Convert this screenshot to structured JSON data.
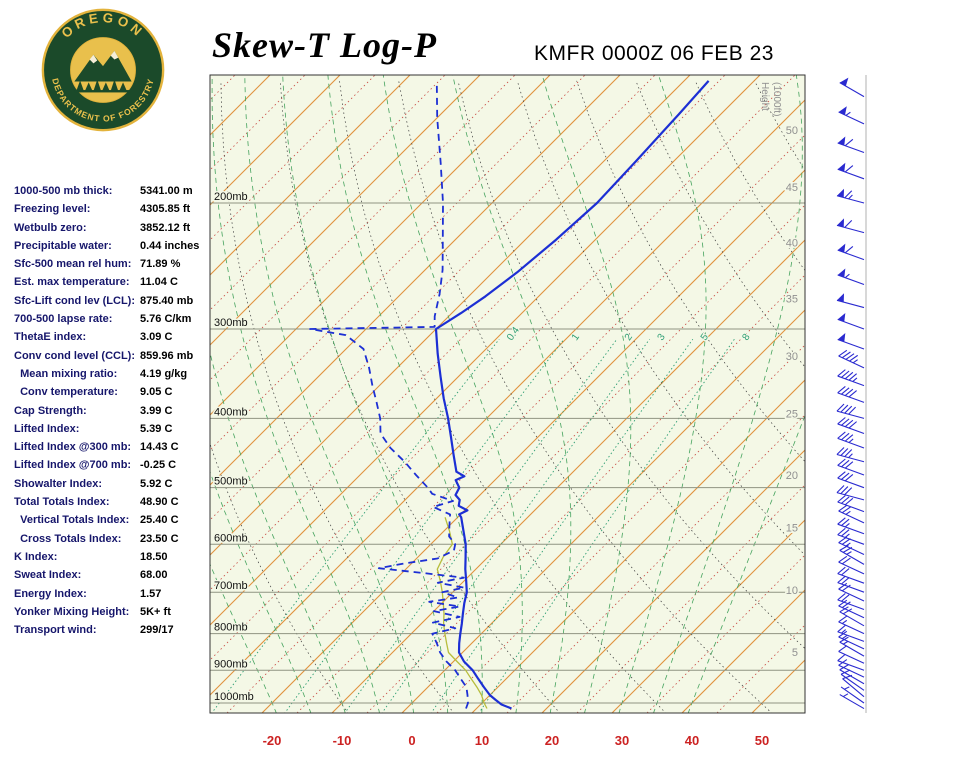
{
  "header": {
    "title": "Skew-T Log-P",
    "station": "KMFR 0000Z 06 FEB 23",
    "logo": {
      "top_text": "OREGON",
      "bottom_text": "DEPARTMENT OF FORESTRY"
    }
  },
  "stats": {
    "rows": [
      {
        "label": "1000-500 mb thick:",
        "value": "5341.00 m"
      },
      {
        "label": "Freezing level:",
        "value": "4305.85 ft"
      },
      {
        "label": "Wetbulb zero:",
        "value": "3852.12 ft"
      },
      {
        "label": "Precipitable water:",
        "value": "0.44 inches"
      },
      {
        "label": "Sfc-500 mean rel hum:",
        "value": "71.89 %"
      },
      {
        "label": "Est. max temperature:",
        "value": "11.04 C"
      },
      {
        "label": "Sfc-Lift cond lev (LCL):",
        "value": "875.40 mb"
      },
      {
        "label": "700-500 lapse rate:",
        "value": "5.76 C/km"
      },
      {
        "label": "ThetaE index:",
        "value": "3.09 C"
      },
      {
        "label": "Conv cond level (CCL):",
        "value": "859.96 mb"
      },
      {
        "label": "  Mean mixing ratio:",
        "value": "4.19 g/kg"
      },
      {
        "label": "  Conv temperature:",
        "value": "9.05 C"
      },
      {
        "label": "Cap Strength:",
        "value": "3.99 C"
      },
      {
        "label": "Lifted Index:",
        "value": "5.39 C"
      },
      {
        "label": "Lifted Index @300 mb:",
        "value": "14.43 C"
      },
      {
        "label": "Lifted Index @700 mb:",
        "value": "-0.25 C"
      },
      {
        "label": "Showalter Index:",
        "value": "5.92 C"
      },
      {
        "label": "Total Totals Index:",
        "value": "48.90 C"
      },
      {
        "label": "  Vertical Totals Index:",
        "value": "25.40 C"
      },
      {
        "label": "  Cross Totals Index:",
        "value": "23.50 C"
      },
      {
        "label": "K Index:",
        "value": "18.50"
      },
      {
        "label": "Sweat Index:",
        "value": "68.00"
      },
      {
        "label": "Energy Index:",
        "value": "1.57"
      },
      {
        "label": "Yonker Mixing Height:",
        "value": "5K+ ft"
      },
      {
        "label": "Transport wind:",
        "value": "299/17"
      }
    ]
  },
  "chart_data": {
    "type": "line",
    "variant": "skew-t-log-p",
    "title": "Skew-T Log-P",
    "pressure_axis": {
      "unit": "mb",
      "values": [
        200,
        300,
        400,
        500,
        600,
        700,
        800,
        900,
        1000
      ],
      "log_range_mb": [
        132,
        1033
      ]
    },
    "temp_axis": {
      "unit": "C",
      "values": [
        -20,
        -10,
        0,
        10,
        20,
        30,
        40,
        50
      ]
    },
    "height_axis": {
      "title_lines": [
        "Height",
        "(1000ft)"
      ],
      "labels": [
        [
          50,
          158
        ],
        [
          45,
          190
        ],
        [
          40,
          227
        ],
        [
          35,
          272
        ],
        [
          30,
          327
        ],
        [
          25,
          394
        ],
        [
          20,
          480
        ],
        [
          15,
          568
        ],
        [
          10,
          695
        ],
        [
          5,
          848
        ]
      ]
    },
    "background": {
      "isotherms_c": [
        -120,
        -110,
        -100,
        -90,
        -80,
        -70,
        -60,
        -50,
        -40,
        -30,
        -20,
        -10,
        0,
        10,
        20,
        30,
        40,
        50
      ],
      "isotherm_minor_c": [
        -115,
        -105,
        -95,
        -85,
        -75,
        -65,
        -55,
        -45,
        -35,
        -25,
        -15,
        -5,
        5,
        15,
        25,
        35,
        45
      ],
      "dry_adiabats_k": [
        263,
        278,
        293,
        308,
        323,
        338,
        353,
        368,
        383,
        398,
        413,
        428,
        443,
        458
      ],
      "moist_adiabats_c": [
        -20,
        -15,
        -10,
        -5,
        0,
        5,
        10,
        15,
        20,
        25,
        30,
        35,
        40
      ],
      "mixing_ratios_gkg": [
        0.4,
        1,
        2,
        3,
        5,
        8
      ]
    },
    "series": [
      {
        "name": "wetbulb",
        "color": "#b7bd3c",
        "width": 1.3,
        "dash": "",
        "points": [
          [
            1018,
            11.5
          ],
          [
            1000,
            10.3
          ],
          [
            975,
            8.8
          ],
          [
            950,
            7
          ],
          [
            925,
            5
          ],
          [
            900,
            3
          ],
          [
            875,
            0.5
          ],
          [
            850,
            -2
          ],
          [
            825,
            -3.6
          ],
          [
            800,
            -5.2
          ],
          [
            775,
            -6.8
          ],
          [
            750,
            -8.2
          ],
          [
            725,
            -9.8
          ],
          [
            700,
            -11.5
          ],
          [
            675,
            -13.4
          ],
          [
            650,
            -15.5
          ],
          [
            625,
            -16.4
          ],
          [
            600,
            -16.9
          ],
          [
            575,
            -19.2
          ],
          [
            550,
            -21.8
          ]
        ]
      },
      {
        "name": "dewpoint",
        "color": "#1c2fd4",
        "width": 1.8,
        "dash": "7,5",
        "points": [
          [
            1018,
            8.5
          ],
          [
            1000,
            8
          ],
          [
            975,
            6.8
          ],
          [
            950,
            5.5
          ],
          [
            925,
            3.5
          ],
          [
            900,
            1.5
          ],
          [
            875,
            -1
          ],
          [
            850,
            -3.2
          ],
          [
            825,
            -5
          ],
          [
            800,
            -7
          ],
          [
            786,
            -4.5
          ],
          [
            772,
            -8.5
          ],
          [
            758,
            -5.5
          ],
          [
            744,
            -10
          ],
          [
            733,
            -7
          ],
          [
            722,
            -12
          ],
          [
            712,
            -8.5
          ],
          [
            700,
            -11.5
          ],
          [
            690,
            -9
          ],
          [
            679,
            -13.5
          ],
          [
            668,
            -10.5
          ],
          [
            658,
            -17
          ],
          [
            648,
            -24
          ],
          [
            638,
            -21
          ],
          [
            628,
            -17
          ],
          [
            612,
            -15.8
          ],
          [
            600,
            -16.5
          ],
          [
            585,
            -18.5
          ],
          [
            565,
            -20
          ],
          [
            545,
            -21.5
          ],
          [
            532,
            -25
          ],
          [
            522,
            -23
          ],
          [
            510,
            -27
          ],
          [
            500,
            -28.5
          ],
          [
            480,
            -32
          ],
          [
            460,
            -35.5
          ],
          [
            440,
            -39.5
          ],
          [
            420,
            -43
          ],
          [
            400,
            -45.2
          ],
          [
            380,
            -48
          ],
          [
            360,
            -51
          ],
          [
            340,
            -54
          ],
          [
            320,
            -57.5
          ],
          [
            306,
            -62
          ],
          [
            300,
            -68
          ],
          [
            298,
            -50.5
          ],
          [
            288,
            -52
          ],
          [
            268,
            -54.5
          ],
          [
            248,
            -57.5
          ],
          [
            224,
            -62
          ],
          [
            200,
            -67
          ],
          [
            176,
            -73
          ],
          [
            152,
            -80
          ],
          [
            136,
            -85
          ]
        ]
      },
      {
        "name": "temperature",
        "color": "#1c2fd4",
        "width": 2.2,
        "dash": "",
        "points": [
          [
            1018,
            15
          ],
          [
            1005,
            13
          ],
          [
            990,
            11.5
          ],
          [
            975,
            10
          ],
          [
            950,
            8
          ],
          [
            925,
            6
          ],
          [
            900,
            4
          ],
          [
            875,
            1.5
          ],
          [
            850,
            -0.5
          ],
          [
            825,
            -1.8
          ],
          [
            800,
            -3
          ],
          [
            775,
            -4.2
          ],
          [
            750,
            -5.5
          ],
          [
            725,
            -6.8
          ],
          [
            700,
            -8
          ],
          [
            675,
            -9.7
          ],
          [
            650,
            -11.5
          ],
          [
            625,
            -13.2
          ],
          [
            600,
            -15
          ],
          [
            575,
            -17.2
          ],
          [
            550,
            -19.5
          ],
          [
            545,
            -20.2
          ],
          [
            538,
            -19.6
          ],
          [
            530,
            -21.5
          ],
          [
            520,
            -22.2
          ],
          [
            512,
            -23.5
          ],
          [
            500,
            -24
          ],
          [
            488,
            -25.6
          ],
          [
            482,
            -24.9
          ],
          [
            475,
            -26.7
          ],
          [
            450,
            -29.5
          ],
          [
            425,
            -32.4
          ],
          [
            400,
            -35.5
          ],
          [
            375,
            -39
          ],
          [
            350,
            -42.5
          ],
          [
            325,
            -46.2
          ],
          [
            300,
            -50
          ],
          [
            285,
            -48.7
          ],
          [
            270,
            -47.6
          ],
          [
            250,
            -46.5
          ],
          [
            225,
            -45.6
          ],
          [
            200,
            -45
          ],
          [
            175,
            -45.4
          ],
          [
            150,
            -46
          ],
          [
            135,
            -46.5
          ]
        ]
      }
    ],
    "wind_barbs": {
      "color": "#2a2ad0",
      "levels": [
        [
          1018,
          300,
          5
        ],
        [
          1000,
          305,
          7
        ],
        [
          980,
          310,
          8
        ],
        [
          960,
          305,
          9
        ],
        [
          940,
          300,
          10
        ],
        [
          920,
          295,
          10
        ],
        [
          900,
          290,
          12
        ],
        [
          880,
          295,
          12
        ],
        [
          860,
          300,
          15
        ],
        [
          840,
          295,
          15
        ],
        [
          820,
          290,
          15
        ],
        [
          800,
          295,
          17
        ],
        [
          780,
          300,
          18
        ],
        [
          760,
          295,
          18
        ],
        [
          740,
          290,
          20
        ],
        [
          720,
          295,
          20
        ],
        [
          700,
          290,
          20
        ],
        [
          680,
          290,
          22
        ],
        [
          660,
          295,
          22
        ],
        [
          640,
          300,
          23
        ],
        [
          620,
          295,
          25
        ],
        [
          600,
          290,
          25
        ],
        [
          580,
          290,
          25
        ],
        [
          560,
          295,
          27
        ],
        [
          540,
          290,
          28
        ],
        [
          520,
          285,
          30
        ],
        [
          500,
          290,
          30
        ],
        [
          480,
          290,
          32
        ],
        [
          460,
          285,
          35
        ],
        [
          440,
          290,
          35
        ],
        [
          420,
          290,
          38
        ],
        [
          400,
          285,
          40
        ],
        [
          380,
          290,
          42
        ],
        [
          360,
          290,
          45
        ],
        [
          340,
          295,
          45
        ],
        [
          320,
          290,
          48
        ],
        [
          300,
          290,
          50
        ],
        [
          280,
          285,
          52
        ],
        [
          260,
          290,
          55
        ],
        [
          240,
          290,
          58
        ],
        [
          220,
          285,
          60
        ],
        [
          200,
          285,
          65
        ],
        [
          185,
          290,
          62
        ],
        [
          170,
          290,
          58
        ],
        [
          155,
          295,
          55
        ],
        [
          142,
          300,
          50
        ]
      ]
    },
    "colors": {
      "plot_bg": "#f4f8e6",
      "isobar": "#8f9482",
      "isotherm": "#e0923e",
      "isotherm_minor": "#c84840",
      "dry_adiabat": "#3a3a3a",
      "moist_adiabat": "#46a35e",
      "mixing_ratio": "#2f9e74",
      "temp_axis_label": "#cc2222",
      "pressure_label": "#111111",
      "height_label": "#909090",
      "wind_axis": "#b0b0b0",
      "border": "#333333"
    }
  }
}
